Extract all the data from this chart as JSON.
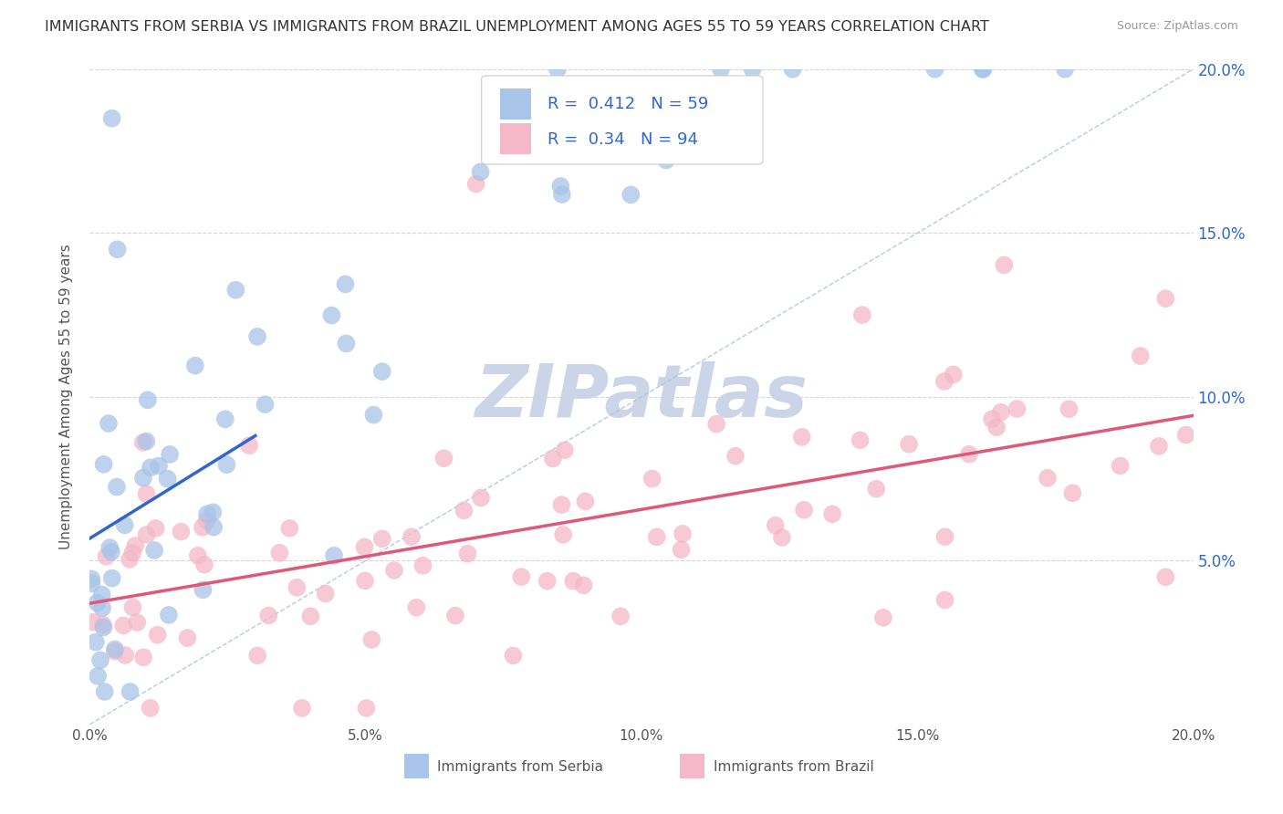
{
  "title": "IMMIGRANTS FROM SERBIA VS IMMIGRANTS FROM BRAZIL UNEMPLOYMENT AMONG AGES 55 TO 59 YEARS CORRELATION CHART",
  "source": "Source: ZipAtlas.com",
  "ylabel": "Unemployment Among Ages 55 to 59 years",
  "series": [
    {
      "name": "Immigrants from Serbia",
      "color": "#a8c4e8",
      "line_color": "#3366cc",
      "R": 0.412,
      "N": 59
    },
    {
      "name": "Immigrants from Brazil",
      "color": "#f4b8c8",
      "line_color": "#e05878",
      "R": 0.34,
      "N": 94
    }
  ],
  "xlim": [
    0.0,
    0.2
  ],
  "ylim": [
    0.0,
    0.2
  ],
  "xticks": [
    0.0,
    0.05,
    0.1,
    0.15,
    0.2
  ],
  "yticks": [
    0.05,
    0.1,
    0.15,
    0.2
  ],
  "xticklabels": [
    "0.0%",
    "5.0%",
    "10.0%",
    "15.0%",
    "20.0%"
  ],
  "right_yticklabels": [
    "5.0%",
    "10.0%",
    "15.0%",
    "20.0%"
  ],
  "right_yticks": [
    0.05,
    0.1,
    0.15,
    0.2
  ],
  "bg_color": "#ffffff",
  "grid_color": "#cccccc",
  "watermark": "ZIPatlas",
  "watermark_color": "#ccd5e8",
  "legend_R_color": "#3366cc",
  "title_color": "#333333",
  "ylabel_color": "#555555"
}
